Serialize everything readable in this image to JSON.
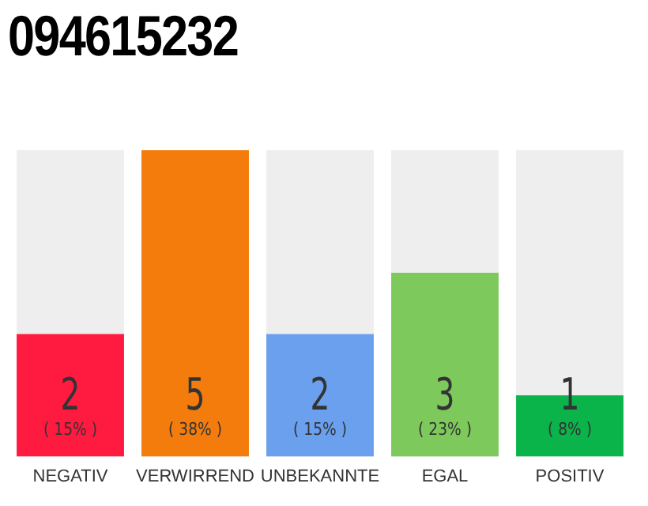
{
  "chart_data": {
    "type": "bar",
    "title": "094615232",
    "categories": [
      "NEGATIV",
      "VERWIRREND",
      "UNBEKANNTE",
      "EGAL",
      "POSITIV"
    ],
    "values": [
      2,
      5,
      2,
      3,
      1
    ],
    "colors": [
      "#ff1a40",
      "#f47c0c",
      "#6aa0ee",
      "#7ec95c",
      "#0bb44a"
    ],
    "value_labels": [
      "2\n( 15% )",
      "5\n( 38% )",
      "2\n( 15% )",
      "3\n( 23% )",
      "1\n( 8% )"
    ],
    "ylim": [
      0,
      5
    ],
    "grid": false,
    "legend": false,
    "tick_labels": "x"
  }
}
